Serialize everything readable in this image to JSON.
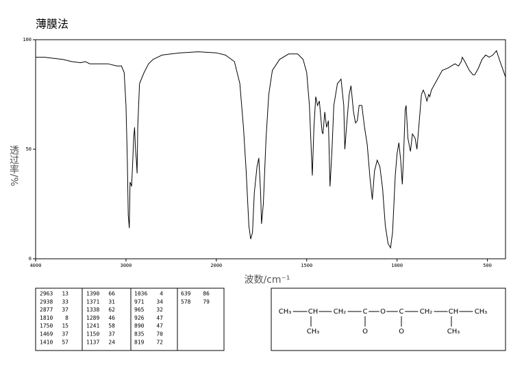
{
  "chart_data": {
    "type": "line",
    "title": "薄膜法",
    "x_label": "波数/cm⁻¹",
    "y_label": "透过率/%",
    "xlim": [
      4000,
      400
    ],
    "x_scale_change": 2000,
    "ylim": [
      0,
      100
    ],
    "xticks": [
      4000,
      3000,
      2000,
      1500,
      1000,
      500
    ],
    "yticks": [
      0,
      50,
      100
    ],
    "x": [
      4000,
      3900,
      3800,
      3700,
      3600,
      3500,
      3450,
      3400,
      3300,
      3200,
      3100,
      3050,
      3020,
      3000,
      2985,
      2975,
      2963,
      2955,
      2945,
      2938,
      2930,
      2915,
      2905,
      2895,
      2885,
      2877,
      2870,
      2850,
      2800,
      2750,
      2700,
      2650,
      2600,
      2400,
      2200,
      2000,
      1950,
      1900,
      1870,
      1850,
      1835,
      1820,
      1810,
      1800,
      1790,
      1775,
      1765,
      1755,
      1750,
      1740,
      1725,
      1710,
      1690,
      1650,
      1600,
      1550,
      1520,
      1500,
      1485,
      1469,
      1460,
      1450,
      1440,
      1430,
      1415,
      1410,
      1400,
      1390,
      1380,
      1371,
      1360,
      1350,
      1330,
      1310,
      1295,
      1289,
      1280,
      1265,
      1255,
      1241,
      1230,
      1220,
      1210,
      1195,
      1180,
      1165,
      1150,
      1137,
      1125,
      1110,
      1095,
      1080,
      1065,
      1050,
      1036,
      1025,
      1010,
      1000,
      990,
      980,
      971,
      965,
      955,
      950,
      940,
      926,
      915,
      900,
      890,
      880,
      865,
      855,
      845,
      835,
      825,
      819,
      810,
      790,
      770,
      750,
      720,
      700,
      680,
      660,
      645,
      639,
      625,
      600,
      580,
      570,
      550,
      530,
      510,
      490,
      470,
      450,
      430,
      400
    ],
    "series": [
      {
        "color": "#000000",
        "values": [
          92,
          92,
          91.5,
          91,
          90,
          89.5,
          90,
          89,
          89,
          89,
          88,
          88,
          85,
          70,
          45,
          20,
          14,
          35,
          34,
          33,
          40,
          55,
          60,
          50,
          45,
          39,
          60,
          80,
          85,
          89,
          91,
          92,
          93,
          94,
          94.5,
          94,
          93,
          90,
          80,
          60,
          40,
          15,
          9,
          12,
          30,
          42,
          46,
          30,
          16,
          25,
          55,
          75,
          86,
          91,
          93.5,
          93.5,
          91,
          85,
          70,
          38,
          60,
          74,
          70,
          72,
          58,
          57,
          67,
          60,
          63,
          33,
          50,
          70,
          80,
          82,
          70,
          50,
          60,
          75,
          79,
          67,
          62,
          63,
          70,
          70,
          60,
          52,
          37,
          27,
          40,
          45,
          42,
          32,
          15,
          7,
          5,
          12,
          38,
          48,
          53,
          45,
          34,
          45,
          68,
          70,
          55,
          49,
          57,
          55,
          50,
          60,
          75,
          77,
          75,
          72,
          75,
          74,
          77,
          80,
          83,
          86,
          87,
          88,
          89,
          88,
          90,
          92,
          90,
          86,
          84,
          84,
          87,
          91,
          93,
          92,
          93,
          95,
          90,
          83
        ]
      }
    ]
  },
  "peak_table": {
    "columns": [
      [
        [
          2963,
          13
        ],
        [
          2938,
          33
        ],
        [
          2877,
          37
        ],
        [
          1810,
          8
        ],
        [
          1750,
          15
        ],
        [
          1469,
          37
        ],
        [
          1410,
          57
        ]
      ],
      [
        [
          1390,
          66
        ],
        [
          1371,
          31
        ],
        [
          1338,
          62
        ],
        [
          1289,
          46
        ],
        [
          1241,
          58
        ],
        [
          1150,
          37
        ],
        [
          1137,
          24
        ]
      ],
      [
        [
          1036,
          4
        ],
        [
          971,
          34
        ],
        [
          965,
          32
        ],
        [
          926,
          47
        ],
        [
          890,
          47
        ],
        [
          835,
          70
        ],
        [
          819,
          72
        ]
      ],
      [
        [
          639,
          86
        ],
        [
          578,
          79
        ]
      ]
    ]
  },
  "structure": {
    "chain": [
      "CH₃",
      "CH",
      "CH₂",
      "C",
      "O",
      "C",
      "CH₂",
      "CH",
      "CH₃"
    ],
    "branches": [
      "CH₃",
      "O",
      "O",
      "CH₃"
    ]
  }
}
